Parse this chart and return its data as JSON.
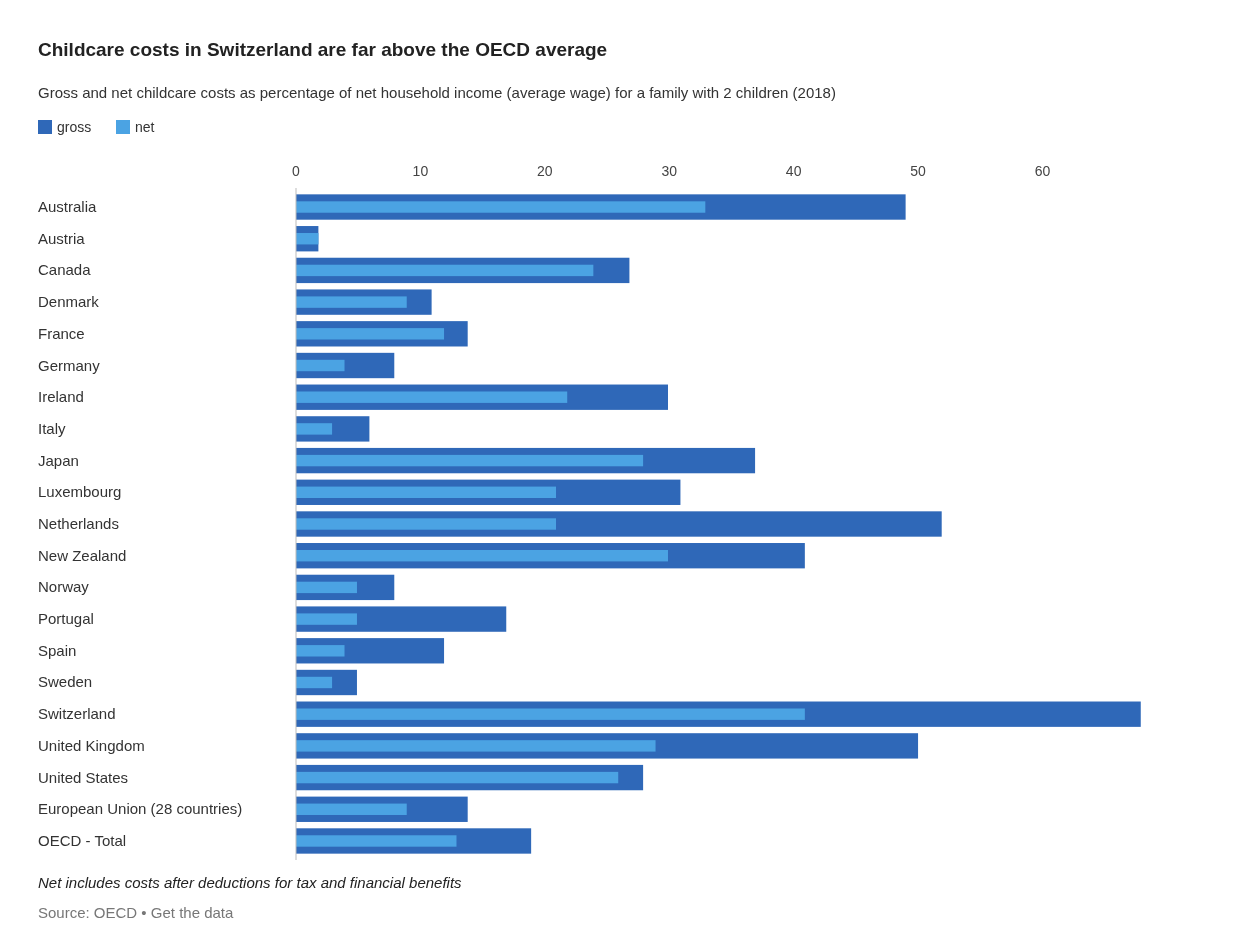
{
  "chart_data": {
    "type": "bar",
    "orientation": "horizontal",
    "title": "Childcare costs in Switzerland are far above the OECD average",
    "subtitle": "Gross and net childcare costs as percentage of net household income (average wage) for a family with 2 children (2018)",
    "categories": [
      "Australia",
      "Austria",
      "Canada",
      "Denmark",
      "France",
      "Germany",
      "Ireland",
      "Italy",
      "Japan",
      "Luxembourg",
      "Netherlands",
      "New Zealand",
      "Norway",
      "Portugal",
      "Spain",
      "Sweden",
      "Switzerland",
      "United Kingdom",
      "United States",
      "European Union (28 countries)",
      "OECD - Total"
    ],
    "series": [
      {
        "name": "gross",
        "color": "#2f68b8",
        "values": [
          49,
          1.8,
          26.8,
          10.9,
          13.8,
          7.9,
          29.9,
          5.9,
          36.9,
          30.9,
          51.9,
          40.9,
          7.9,
          16.9,
          11.9,
          4.9,
          67.9,
          50,
          27.9,
          13.8,
          18.9
        ]
      },
      {
        "name": "net",
        "color": "#4ba3e3",
        "values": [
          32.9,
          1.8,
          23.9,
          8.9,
          11.9,
          3.9,
          21.8,
          2.9,
          27.9,
          20.9,
          20.9,
          29.9,
          4.9,
          4.9,
          3.9,
          2.9,
          40.9,
          28.9,
          25.9,
          8.9,
          12.9
        ]
      }
    ],
    "xlim": [
      0,
      68
    ],
    "xticks": [
      0,
      10,
      20,
      30,
      40,
      50,
      60
    ],
    "grid": false,
    "legend": "top left",
    "annotations": [
      "Net includes costs after deductions for tax and financial benefits",
      "Source: OECD • Get the data"
    ]
  }
}
